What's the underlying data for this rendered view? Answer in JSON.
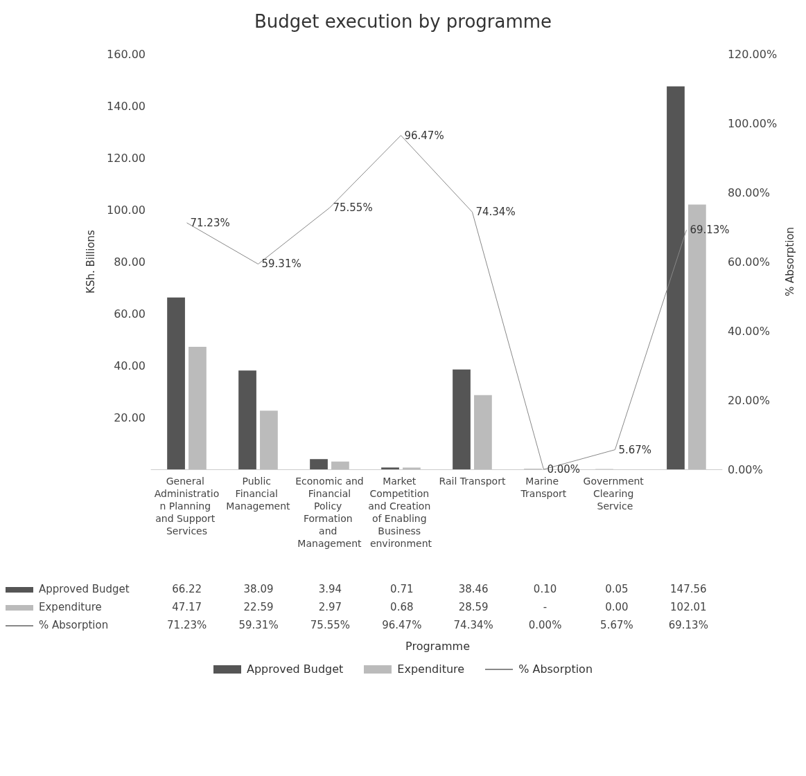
{
  "chart_data": {
    "type": "bar",
    "title": "Budget execution by programme",
    "ylabel": "KSh. Billions",
    "y2label": "% Absorption",
    "annotations": [
      "Programme"
    ],
    "categories": [
      "General Administration Planning and Support Services",
      "Public Financial Management",
      "Economic and Financial Policy Formation and Management",
      "Market Competition and Creation of Enabling Business environment",
      "Rail Transport",
      "Marine Transport",
      "Government Clearing Service",
      null
    ],
    "series": [
      {
        "name": "Approved Budget",
        "color": "#555555",
        "values": [
          66.22,
          38.09,
          3.94,
          0.71,
          38.46,
          0.1,
          0.05,
          147.56
        ],
        "value_labels": [
          "66.22",
          "38.09",
          "3.94",
          "0.71",
          "38.46",
          "0.10",
          "0.05",
          "147.56"
        ]
      },
      {
        "name": "Expenditure",
        "color": "#bbbbbb",
        "values": [
          47.17,
          22.59,
          2.97,
          0.68,
          28.59,
          null,
          0.0,
          102.01
        ],
        "value_labels": [
          "47.17",
          "22.59",
          "2.97",
          "0.68",
          "28.59",
          "-",
          "0.00",
          "102.01"
        ]
      },
      {
        "name": "% Absorption",
        "type": "line",
        "axis": "y2",
        "color": "#888888",
        "values": [
          71.23,
          59.31,
          75.55,
          96.47,
          74.34,
          0.0,
          5.67,
          69.13
        ],
        "value_labels": [
          "71.23%",
          "59.31%",
          "75.55%",
          "96.47%",
          "74.34%",
          "0.00%",
          "5.67%",
          "69.13%"
        ]
      }
    ],
    "ylim": [
      0,
      160
    ],
    "yticks": [
      {
        "value": 0,
        "label": null
      },
      {
        "value": 20,
        "label": "20.00"
      },
      {
        "value": 40,
        "label": "40.00"
      },
      {
        "value": 60,
        "label": "60.00"
      },
      {
        "value": 80,
        "label": "80.00"
      },
      {
        "value": 100,
        "label": "100.00"
      },
      {
        "value": 120,
        "label": "120.00"
      },
      {
        "value": 140,
        "label": "140.00"
      },
      {
        "value": 160,
        "label": "160.00"
      }
    ],
    "y2lim": [
      0,
      120
    ],
    "y2ticks": [
      {
        "value": 0,
        "label": "0.00%"
      },
      {
        "value": 20,
        "label": "20.00%"
      },
      {
        "value": 40,
        "label": "40.00%"
      },
      {
        "value": 60,
        "label": "60.00%"
      },
      {
        "value": 80,
        "label": "80.00%"
      },
      {
        "value": 100,
        "label": "100.00%"
      },
      {
        "value": 120,
        "label": "120.00%"
      }
    ],
    "grid": false,
    "legend": "bottom",
    "marker": "none",
    "line_style": "solid"
  }
}
